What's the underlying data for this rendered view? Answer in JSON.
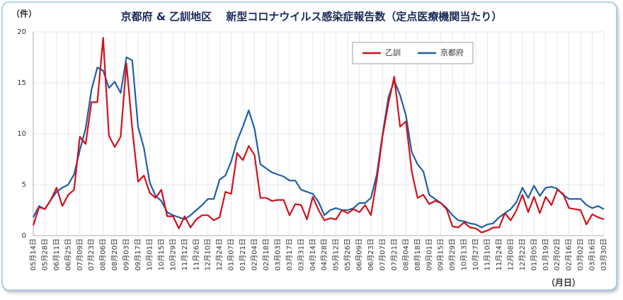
{
  "chart_data": {
    "type": "line",
    "title": "京都府 & 乙訓地区　 新型コロナウイルス感染症報告数（定点医療機関当たり）",
    "y_unit": "（件）",
    "x_unit": "（月日）",
    "categories": [
      "05月14日",
      null,
      "05月28日",
      null,
      "06月11日",
      null,
      "06月25日",
      null,
      "07月09日",
      null,
      "07月23日",
      null,
      "08月06日",
      null,
      "08月20日",
      null,
      "09月03日",
      null,
      "09月17日",
      null,
      "10月01日",
      null,
      "10月15日",
      null,
      "10月29日",
      null,
      "11月12日",
      null,
      "11月26日",
      null,
      "12月10日",
      null,
      "12月24日",
      null,
      "01月07日",
      null,
      "01月21日",
      null,
      "02月04日",
      null,
      "02月18日",
      null,
      "03月03日",
      null,
      "03月17日",
      null,
      "03月31日",
      null,
      "04月14日",
      null,
      "04月28日",
      null,
      "05月12日",
      null,
      "05月26日",
      null,
      "06月09日",
      null,
      "06月23日",
      null,
      "07月07日",
      null,
      "07月21日",
      null,
      "08月04日",
      null,
      "08月18日",
      null,
      "09月01日",
      null,
      "09月15日",
      null,
      "09月29日",
      null,
      "10月13日",
      null,
      "10月27日",
      null,
      "11月10日",
      null,
      "11月24日",
      null,
      "12月08日",
      null,
      "12月22日",
      null,
      "01月05日",
      null,
      "01月19日",
      null,
      "02月02日",
      null,
      "02月16日",
      null,
      "03月02日",
      null,
      "03月16日",
      null,
      "03月30日"
    ],
    "series": [
      {
        "name": "乙訓",
        "color": "#d0121b",
        "values": [
          1.0,
          2.8,
          2.6,
          3.5,
          4.7,
          2.9,
          4.0,
          4.5,
          9.7,
          9.0,
          13.1,
          13.1,
          19.4,
          9.8,
          8.7,
          9.7,
          16.9,
          10.5,
          5.3,
          5.9,
          4.2,
          3.7,
          4.5,
          1.9,
          1.9,
          0.7,
          1.9,
          0.8,
          1.6,
          2.0,
          2.0,
          1.5,
          1.8,
          4.3,
          4.1,
          8.1,
          7.4,
          8.8,
          7.9,
          3.7,
          3.7,
          3.4,
          3.5,
          3.5,
          2.0,
          3.1,
          3.0,
          1.6,
          3.8,
          2.5,
          1.5,
          1.7,
          1.6,
          2.5,
          2.2,
          2.6,
          2.3,
          3.0,
          2.0,
          5.5,
          9.8,
          13.0,
          15.6,
          10.7,
          11.2,
          6.3,
          3.7,
          4.0,
          3.1,
          3.4,
          3.2,
          2.6,
          0.9,
          0.8,
          1.3,
          0.8,
          0.7,
          0.3,
          0.5,
          0.8,
          0.8,
          2.2,
          1.5,
          2.5,
          4.0,
          2.3,
          3.8,
          2.2,
          3.8,
          3.0,
          4.5,
          4.1,
          2.7,
          2.6,
          2.5,
          1.1,
          2.1,
          1.8,
          1.6
        ]
      },
      {
        "name": "京都府",
        "color": "#1f5fa6",
        "values": [
          1.8,
          2.9,
          2.6,
          3.5,
          4.3,
          4.7,
          5.0,
          6.0,
          8.4,
          10.5,
          14.3,
          16.5,
          16.2,
          14.5,
          15.1,
          14.0,
          17.5,
          17.2,
          10.7,
          8.6,
          5.2,
          3.9,
          3.4,
          2.3,
          2.0,
          1.8,
          1.6,
          2.0,
          2.5,
          3.0,
          3.6,
          3.6,
          5.5,
          5.9,
          7.3,
          9.3,
          10.7,
          12.3,
          10.5,
          7.0,
          6.6,
          6.2,
          6.0,
          5.8,
          5.4,
          5.4,
          4.5,
          4.3,
          4.1,
          3.3,
          2.0,
          2.5,
          2.7,
          2.5,
          2.5,
          2.7,
          3.2,
          3.2,
          3.7,
          6.0,
          10.0,
          13.6,
          15.2,
          13.8,
          11.8,
          8.2,
          7.0,
          6.3,
          4.0,
          3.6,
          3.2,
          2.7,
          2.0,
          1.5,
          1.4,
          1.2,
          1.1,
          0.8,
          1.1,
          1.2,
          1.8,
          2.2,
          2.6,
          3.3,
          4.7,
          3.7,
          4.9,
          3.9,
          4.7,
          4.8,
          4.6,
          4.0,
          3.6,
          3.6,
          3.6,
          3.0,
          2.7,
          2.9,
          2.6
        ]
      }
    ],
    "ylim": [
      0,
      20
    ],
    "yticks": [
      0,
      5,
      10,
      15,
      20
    ],
    "grid": true,
    "legend": "top"
  }
}
